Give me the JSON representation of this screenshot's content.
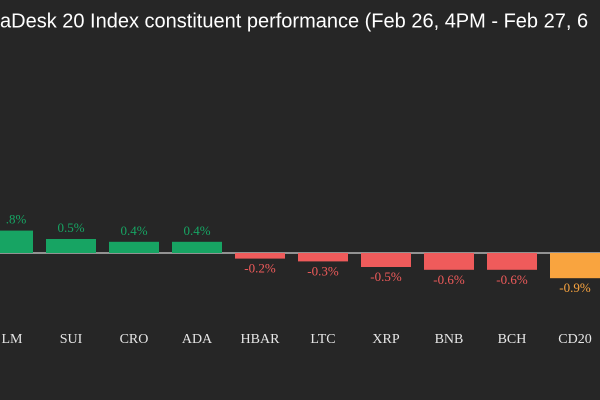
{
  "chart_data": {
    "type": "bar",
    "title": "aDesk 20 Index constituent performance (Feb 26, 4PM - Feb 27, 6",
    "categories": [
      "LM",
      "SUI",
      "CRO",
      "ADA",
      "HBAR",
      "LTC",
      "XRP",
      "BNB",
      "BCH",
      "CD20"
    ],
    "values": [
      0.8,
      0.5,
      0.4,
      0.4,
      -0.2,
      -0.3,
      -0.5,
      -0.6,
      -0.6,
      -0.9
    ],
    "value_labels": [
      ".8%",
      "0.5%",
      "0.4%",
      "0.4%",
      "-0.2%",
      "-0.3%",
      "-0.5%",
      "-0.6%",
      "-0.6%",
      "-0.9%"
    ],
    "colors": [
      "#17a463",
      "#17a463",
      "#17a463",
      "#17a463",
      "#ef5b5b",
      "#ef5b5b",
      "#ef5b5b",
      "#ef5b5b",
      "#ef5b5b",
      "#f9a43f"
    ]
  }
}
